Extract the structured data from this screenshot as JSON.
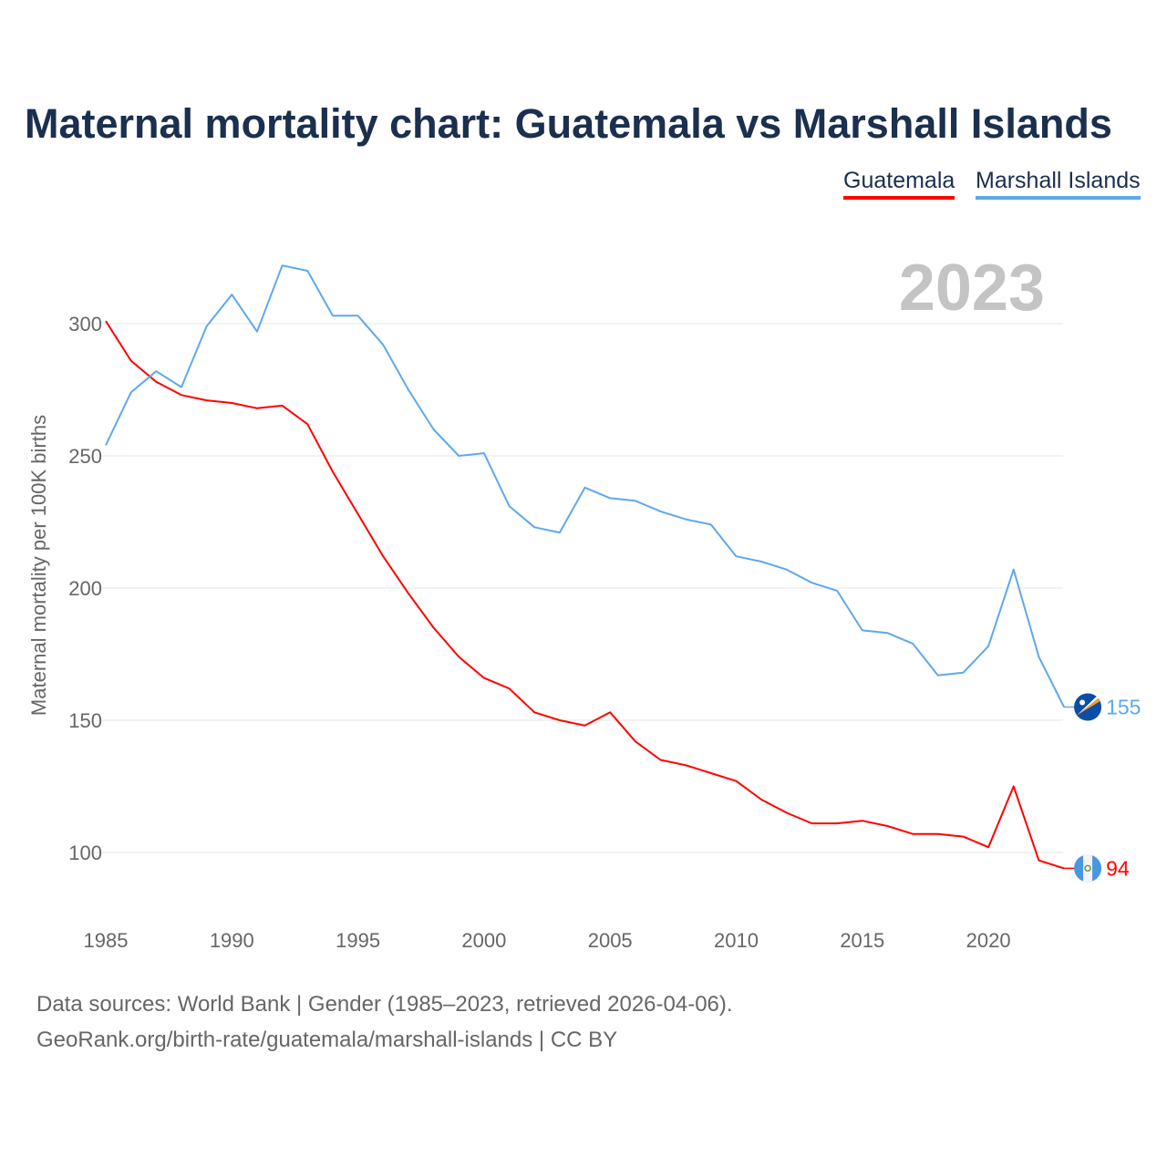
{
  "chart_data": {
    "type": "line",
    "title": "Maternal mortality chart: Guatemala vs Marshall Islands",
    "xlabel": "",
    "ylabel": "Maternal mortality per 100K births",
    "year_label": "2023",
    "xlim": [
      1985,
      2023
    ],
    "ylim": [
      78,
      330
    ],
    "xticks": [
      1985,
      1990,
      1995,
      2000,
      2005,
      2010,
      2015,
      2020
    ],
    "yticks": [
      100,
      150,
      200,
      250,
      300
    ],
    "grid": true,
    "legend_position": "top-right",
    "x": [
      1985,
      1986,
      1987,
      1988,
      1989,
      1990,
      1991,
      1992,
      1993,
      1994,
      1995,
      1996,
      1997,
      1998,
      1999,
      2000,
      2001,
      2002,
      2003,
      2004,
      2005,
      2006,
      2007,
      2008,
      2009,
      2010,
      2011,
      2012,
      2013,
      2014,
      2015,
      2016,
      2017,
      2018,
      2019,
      2020,
      2021,
      2022,
      2023
    ],
    "series": [
      {
        "name": "Guatemala",
        "color": "#ff0000",
        "end_label": "94",
        "values": [
          301,
          286,
          278,
          273,
          271,
          270,
          268,
          269,
          262,
          244,
          228,
          212,
          198,
          185,
          174,
          166,
          162,
          153,
          150,
          148,
          153,
          142,
          135,
          133,
          130,
          127,
          120,
          115,
          111,
          111,
          112,
          110,
          107,
          107,
          106,
          102,
          125,
          97,
          94
        ]
      },
      {
        "name": "Marshall Islands",
        "color": "#5ea8ec",
        "end_label": "155",
        "values": [
          254,
          274,
          282,
          276,
          299,
          311,
          297,
          322,
          320,
          303,
          303,
          292,
          275,
          260,
          250,
          251,
          231,
          223,
          221,
          238,
          234,
          233,
          229,
          226,
          224,
          212,
          210,
          207,
          202,
          199,
          184,
          183,
          179,
          167,
          168,
          178,
          207,
          174,
          155
        ]
      }
    ]
  },
  "footer": {
    "source": "Data sources: World Bank | Gender (1985–2023, retrieved 2026-04-06).",
    "credit": "GeoRank.org/birth-rate/guatemala/marshall-islands | CC BY"
  }
}
